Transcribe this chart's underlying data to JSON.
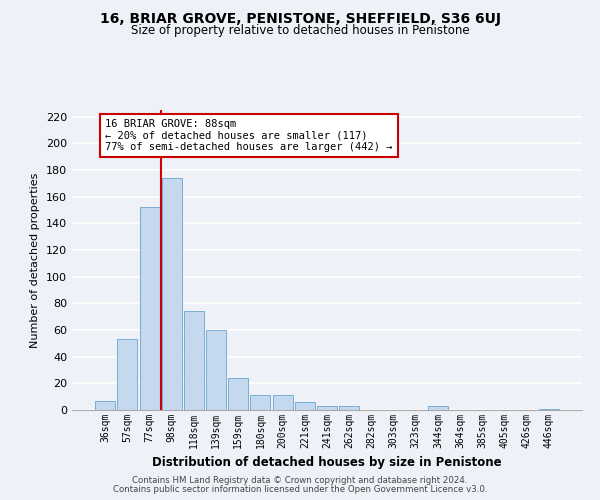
{
  "title": "16, BRIAR GROVE, PENISTONE, SHEFFIELD, S36 6UJ",
  "subtitle": "Size of property relative to detached houses in Penistone",
  "xlabel": "Distribution of detached houses by size in Penistone",
  "ylabel": "Number of detached properties",
  "bar_labels": [
    "36sqm",
    "57sqm",
    "77sqm",
    "98sqm",
    "118sqm",
    "139sqm",
    "159sqm",
    "180sqm",
    "200sqm",
    "221sqm",
    "241sqm",
    "262sqm",
    "282sqm",
    "303sqm",
    "323sqm",
    "344sqm",
    "364sqm",
    "385sqm",
    "405sqm",
    "426sqm",
    "446sqm"
  ],
  "bar_values": [
    7,
    53,
    152,
    174,
    74,
    60,
    24,
    11,
    11,
    6,
    3,
    3,
    0,
    0,
    0,
    3,
    0,
    0,
    0,
    0,
    1
  ],
  "bar_color": "#c5d9ee",
  "bar_edge_color": "#7aadd4",
  "vline_x_idx": 2,
  "vline_color": "#cc0000",
  "annotation_title": "16 BRIAR GROVE: 88sqm",
  "annotation_line1": "← 20% of detached houses are smaller (117)",
  "annotation_line2": "77% of semi-detached houses are larger (442) →",
  "annotation_box_facecolor": "#ffffff",
  "annotation_box_edgecolor": "#cc0000",
  "ylim": [
    0,
    225
  ],
  "yticks": [
    0,
    20,
    40,
    60,
    80,
    100,
    120,
    140,
    160,
    180,
    200,
    220
  ],
  "footer1": "Contains HM Land Registry data © Crown copyright and database right 2024.",
  "footer2": "Contains public sector information licensed under the Open Government Licence v3.0.",
  "bg_color": "#eef2f8",
  "grid_color": "#ffffff"
}
